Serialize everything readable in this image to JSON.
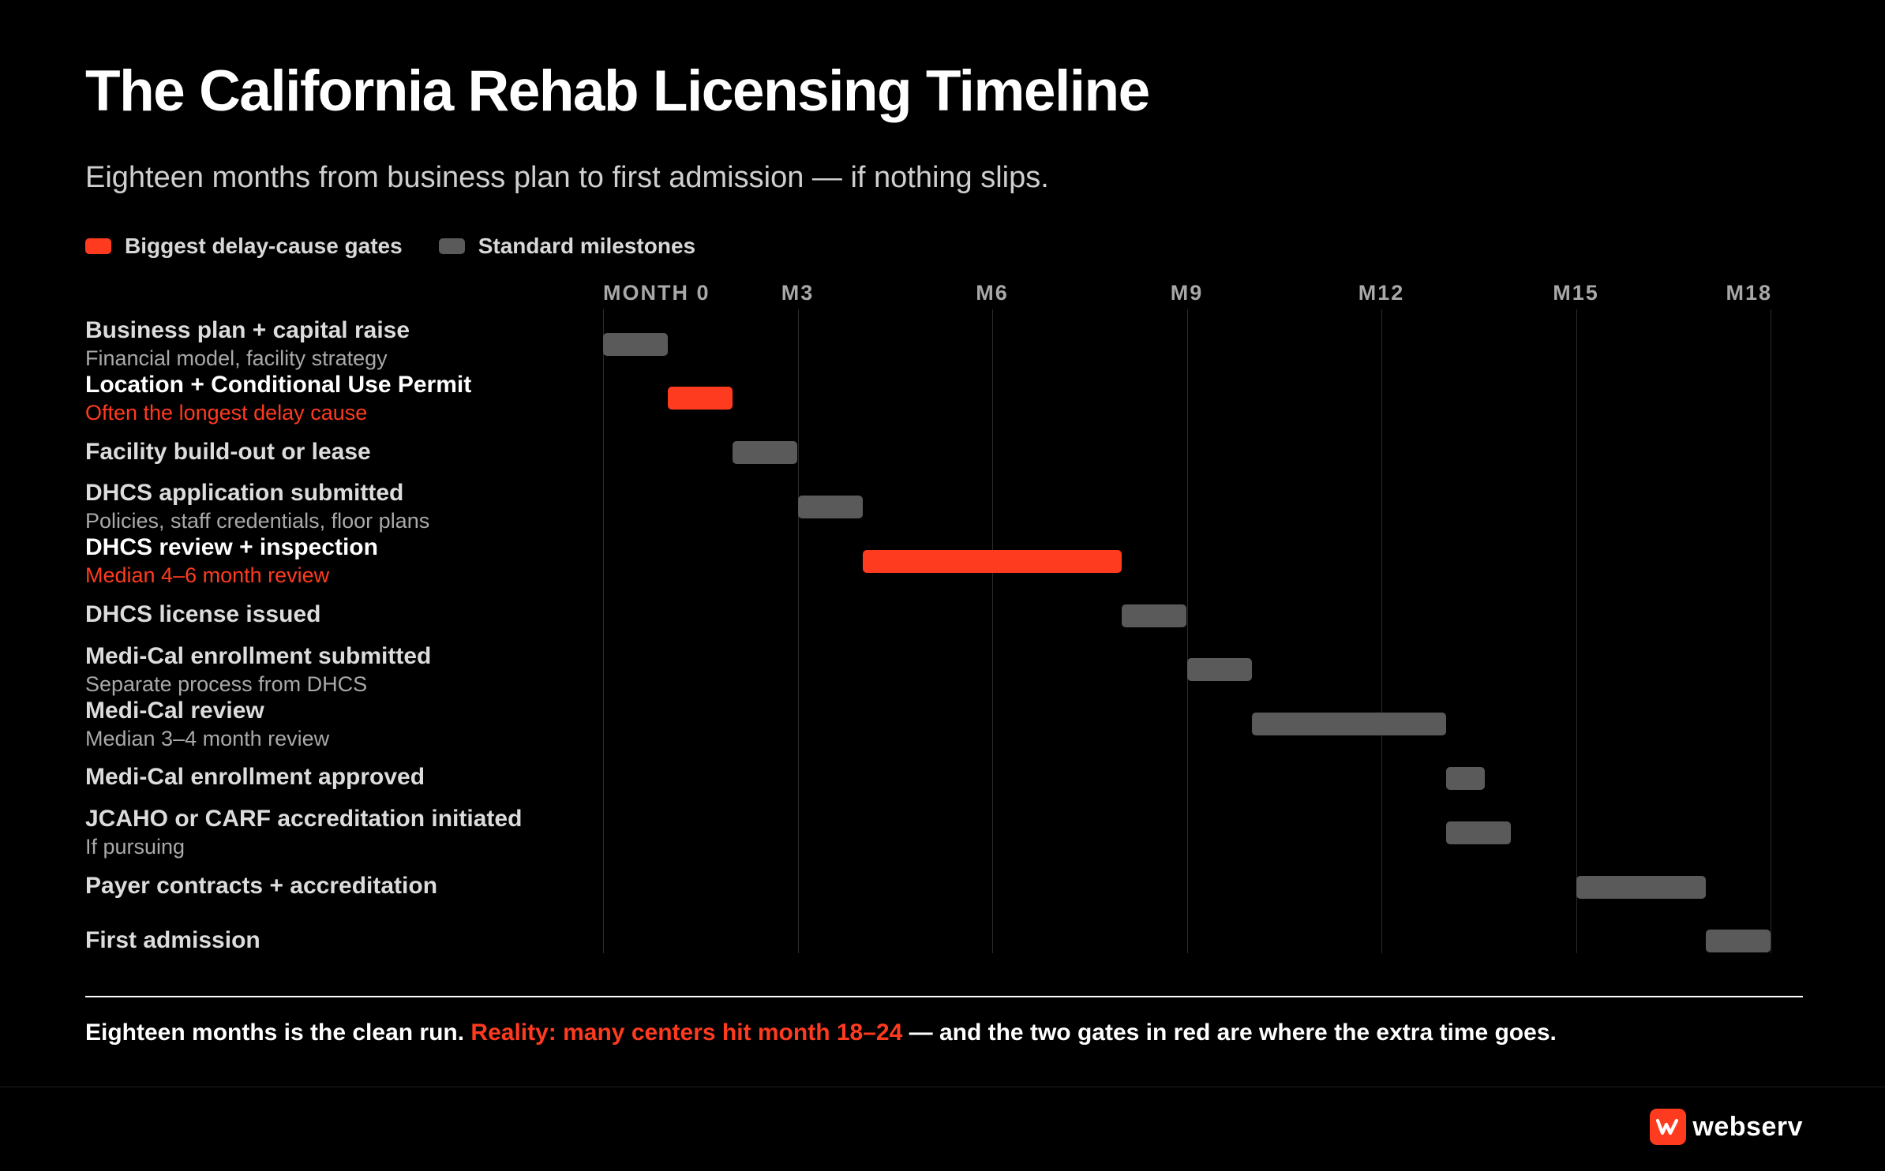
{
  "title": "The California Rehab Licensing Timeline",
  "subtitle": "Eighteen months from business plan to first admission — if nothing slips.",
  "colors": {
    "gate": "#ff3b1f",
    "standard": "#5a5a5a",
    "background": "#000000"
  },
  "legend": [
    {
      "label": "Biggest delay-cause gates",
      "kind": "gate"
    },
    {
      "label": "Standard milestones",
      "kind": "standard"
    }
  ],
  "chart_data": {
    "type": "gantt",
    "x_unit": "month",
    "xlim": [
      0,
      18
    ],
    "ticks": [
      {
        "month": 0,
        "label": "MONTH 0"
      },
      {
        "month": 3,
        "label": "M3"
      },
      {
        "month": 6,
        "label": "M6"
      },
      {
        "month": 9,
        "label": "M9"
      },
      {
        "month": 12,
        "label": "M12"
      },
      {
        "month": 15,
        "label": "M15"
      },
      {
        "month": 18,
        "label": "M18"
      }
    ],
    "tasks": [
      {
        "name": "Business plan + capital raise",
        "note": "Financial model, facility strategy",
        "start": 0,
        "end": 1,
        "gate": false
      },
      {
        "name": "Location + Conditional Use Permit",
        "note": "Often the longest delay cause",
        "start": 1,
        "end": 2,
        "gate": true
      },
      {
        "name": "Facility build-out or lease",
        "note": "",
        "start": 2,
        "end": 3,
        "gate": false
      },
      {
        "name": "DHCS application submitted",
        "note": "Policies, staff credentials, floor plans",
        "start": 3,
        "end": 4,
        "gate": false
      },
      {
        "name": "DHCS review + inspection",
        "note": "Median 4–6 month review",
        "start": 4,
        "end": 8,
        "gate": true
      },
      {
        "name": "DHCS license issued",
        "note": "",
        "start": 8,
        "end": 9,
        "gate": false
      },
      {
        "name": "Medi-Cal enrollment submitted",
        "note": "Separate process from DHCS",
        "start": 9,
        "end": 10,
        "gate": false
      },
      {
        "name": "Medi-Cal review",
        "note": "Median 3–4 month review",
        "start": 10,
        "end": 13,
        "gate": false
      },
      {
        "name": "Medi-Cal enrollment approved",
        "note": "",
        "start": 13,
        "end": 13.6,
        "gate": false
      },
      {
        "name": "JCAHO or CARF accreditation initiated",
        "note": "If pursuing",
        "start": 13,
        "end": 14,
        "gate": false
      },
      {
        "name": "Payer contracts + accreditation",
        "note": "",
        "start": 15,
        "end": 17,
        "gate": false
      },
      {
        "name": "First admission",
        "note": "",
        "start": 17,
        "end": 18,
        "gate": false
      }
    ]
  },
  "footnote": {
    "part1": "Eighteen months is the clean run. ",
    "highlight": "Reality: many centers hit month 18–24",
    "part2": " — and the two gates in red are where the extra time goes."
  },
  "brand": {
    "name": "webserv",
    "logo_icon": "webserv-logo-icon"
  }
}
